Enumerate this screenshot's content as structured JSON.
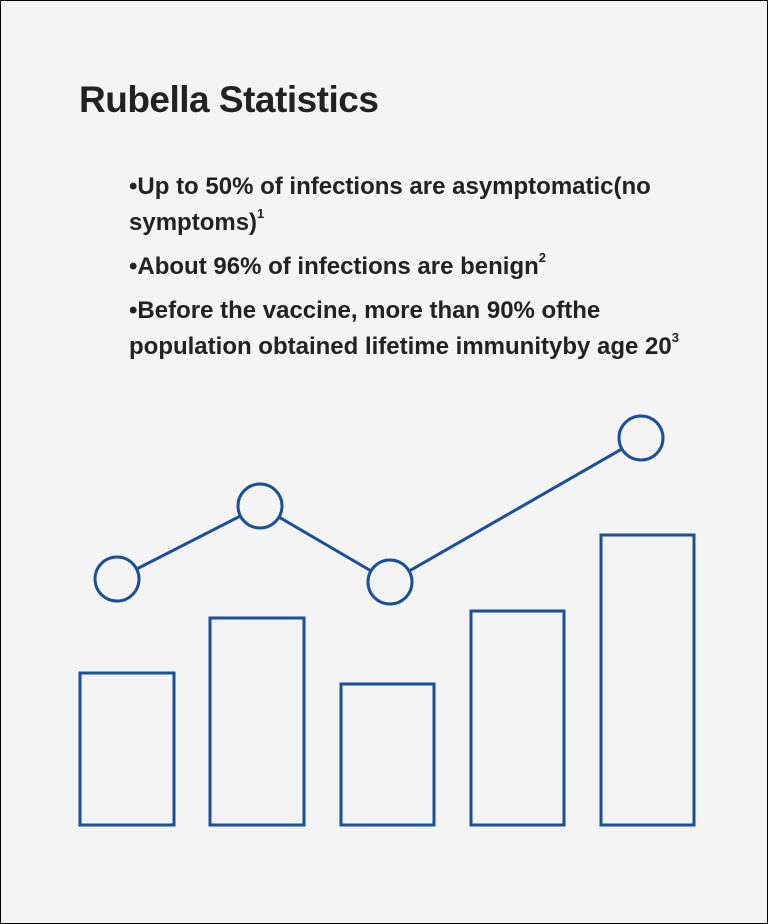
{
  "header": {
    "title": "Rubella Statistics"
  },
  "items": [
    {
      "lines": [
        "Up to 50% of infections are asymptomatic",
        "(no symptoms)"
      ],
      "note": "1"
    },
    {
      "lines": [
        "About 96% of infections are benign"
      ],
      "note": "2"
    },
    {
      "lines": [
        "Before the vaccine, more than 90% of",
        "the population obtained lifetime immunity",
        "by age 20"
      ],
      "note": "3"
    }
  ]
}
